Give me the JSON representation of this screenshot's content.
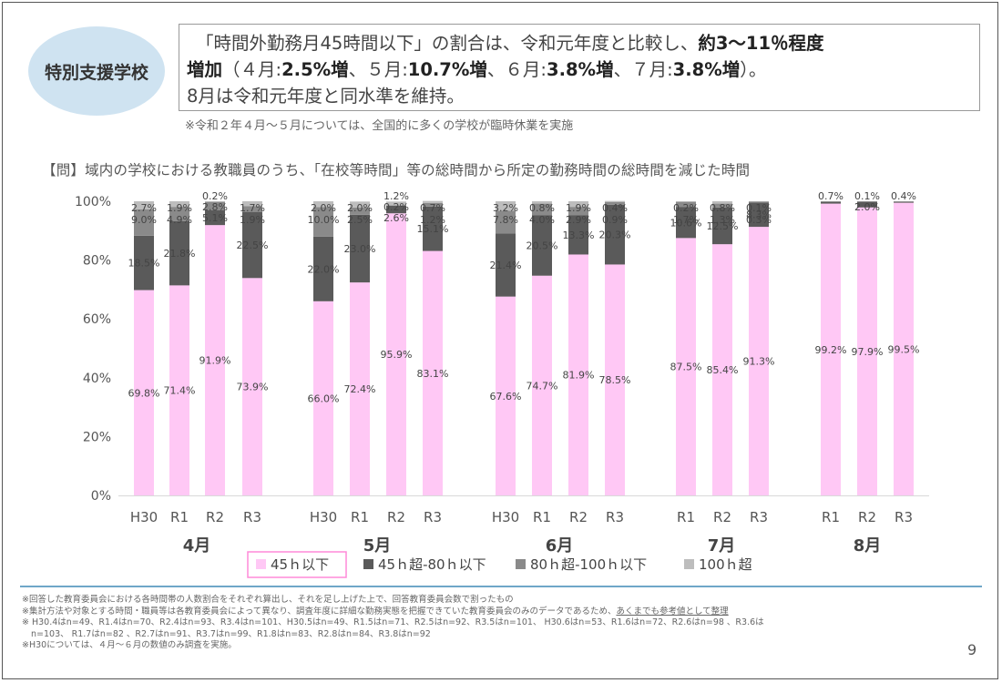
{
  "badge": "特別支援学校",
  "summary": {
    "t1": "「時間外勤務月45時間以下」の割合は、令和元年度と比較し、",
    "t2": "約3～11％程度",
    "t3": "増加",
    "t4": "（４月:",
    "t5": "2.5%増",
    "t6": "、５月:",
    "t7": "10.7%増",
    "t8": "、６月:",
    "t9": "3.8%増",
    "t10": "、７月:",
    "t11": "3.8%増",
    "t12": "）。",
    "t13": "8月は令和元年度と同水準を維持。"
  },
  "note_top": "※令和２年４月～５月については、全国的に多くの学校が臨時休業を実施",
  "question": "【問】域内の学校における教職員のうち、「在校等時間」等の総時間から所定の勤務時間の総時間を減じた時間",
  "chart_data": {
    "type": "bar",
    "stacked": true,
    "percent": true,
    "ylim": [
      0,
      100
    ],
    "yticks": [
      "0%",
      "20%",
      "40%",
      "60%",
      "80%",
      "100%"
    ],
    "groups": [
      {
        "month": "4月",
        "bars": [
          {
            "x": "H30",
            "values": [
              69.8,
              18.5,
              9.0,
              2.7
            ]
          },
          {
            "x": "R1",
            "values": [
              71.4,
              21.8,
              4.9,
              1.9
            ]
          },
          {
            "x": "R2",
            "values": [
              91.9,
              5.1,
              2.8,
              0.2
            ]
          },
          {
            "x": "R3",
            "values": [
              73.9,
              22.5,
              1.9,
              1.7
            ]
          }
        ]
      },
      {
        "month": "5月",
        "bars": [
          {
            "x": "H30",
            "values": [
              66.0,
              22.0,
              10.0,
              2.0
            ]
          },
          {
            "x": "R1",
            "values": [
              72.4,
              23.0,
              2.5,
              2.0
            ]
          },
          {
            "x": "R2",
            "values": [
              95.9,
              2.6,
              0.2,
              1.2
            ]
          },
          {
            "x": "R3",
            "values": [
              83.1,
              15.1,
              1.2,
              0.7
            ]
          }
        ]
      },
      {
        "month": "6月",
        "bars": [
          {
            "x": "H30",
            "values": [
              67.6,
              21.4,
              7.8,
              3.2
            ]
          },
          {
            "x": "R1",
            "values": [
              74.7,
              20.5,
              4.0,
              0.8
            ]
          },
          {
            "x": "R2",
            "values": [
              81.9,
              13.3,
              2.9,
              1.9
            ]
          },
          {
            "x": "R3",
            "values": [
              78.5,
              20.3,
              0.9,
              0.4
            ]
          }
        ]
      },
      {
        "month": "7月",
        "bars": [
          {
            "x": "R1",
            "values": [
              87.5,
              10.6,
              1.7,
              0.2
            ]
          },
          {
            "x": "R2",
            "values": [
              85.4,
              12.5,
              1.3,
              0.8
            ]
          },
          {
            "x": "R3",
            "values": [
              91.3,
              8.3,
              0.3,
              0.1
            ]
          }
        ]
      },
      {
        "month": "8月",
        "bars": [
          {
            "x": "R1",
            "values": [
              99.2,
              0.7,
              0.0,
              0.0
            ]
          },
          {
            "x": "R2",
            "values": [
              97.9,
              2.0,
              0.0,
              0.1
            ]
          },
          {
            "x": "R3",
            "values": [
              99.5,
              0.4,
              0.0,
              0.0
            ]
          }
        ]
      }
    ],
    "series": [
      {
        "name": "45ｈ以下",
        "color": "#ffc8f5"
      },
      {
        "name": "45ｈ超-80ｈ以下",
        "color": "#5a5a5a"
      },
      {
        "name": "80ｈ超-100ｈ以下",
        "color": "#8a8a8a"
      },
      {
        "name": "100ｈ超",
        "color": "#bdbdbd"
      }
    ],
    "legend_position": "bottom"
  },
  "footnotes": {
    "l1": "※回答した教育委員会における各時間帯の人数割合をそれぞれ算出し、それを足し上げた上で、回答教育委員会数で割ったもの",
    "l2a": "※集計方法や対象とする時間・職員等は各教育委員会によって異なり、調査年度に詳細な勤務実態を把握できていた教育委員会のみのデータであるため、",
    "l2b": "あくまでも参考値として整理",
    "l3": "※ H30.4はn=49、R1.4はn=70、R2.4はn=93、R3.4はn=101、H30.5はn=49、R1.5はn=71、R2.5はn=92、R3.5はn=101、 H30.6はn=53、R1.6はn=72、R2.6はn=98 、R3.6は",
    "l4": "n=103、 R1.7はn=82 、R2.7はn=91、R3.7はn=99、R1.8はn=83、R2.8はn=84、R3.8はn=92",
    "l5": "※H30については、４月～６月の数値のみ調査を実施。"
  },
  "page_number": "9"
}
